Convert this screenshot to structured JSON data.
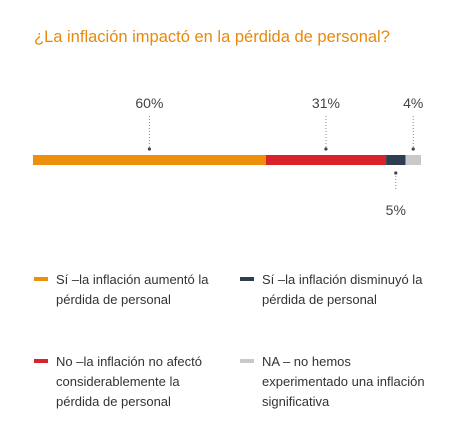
{
  "title": "¿La inflación impactó en la pérdida de personal?",
  "colors": {
    "title": "#e8890c",
    "orange": "#ee8f0b",
    "red": "#d9222a",
    "navy": "#2c3e50",
    "gray": "#c9c9c9"
  },
  "chart_data": {
    "type": "bar",
    "stacked": true,
    "orientation": "horizontal",
    "title": "¿La inflación impactó en la pérdida de personal?",
    "series": [
      {
        "name": "Sí –la inflación aumentó la pérdida de personal",
        "value": 60,
        "label": "60%",
        "color": "#ee8f0b"
      },
      {
        "name": "No –la inflación no afectó considerablemente la pérdida de personal",
        "value": 31,
        "label": "31%",
        "color": "#d9222a"
      },
      {
        "name": "Sí –la inflación disminuyó la pérdida de personal",
        "value": 5,
        "label": "5%",
        "color": "#2c3e50"
      },
      {
        "name": "NA – no hemos experimentado una inflación significativa",
        "value": 4,
        "label": "4%",
        "color": "#c9c9c9"
      }
    ],
    "xlim": [
      0,
      100
    ]
  },
  "legend": [
    {
      "text": "Sí –la inflación aumentó la pérdida de personal",
      "color": "#ee8f0b"
    },
    {
      "text": "Sí –la inflación disminuyó la pérdida de personal",
      "color": "#2c3e50"
    },
    {
      "text": "No –la inflación no afectó considerablemente la pérdida de personal",
      "color": "#d9222a"
    },
    {
      "text": "NA – no hemos experimentado una inflación significativa",
      "color": "#c9c9c9"
    }
  ]
}
